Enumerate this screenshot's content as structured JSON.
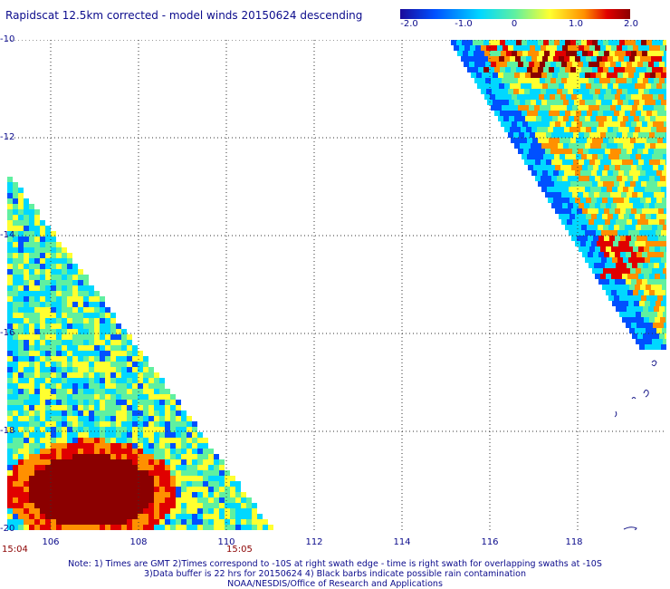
{
  "title": "Rapidscat 12.5km corrected - model winds 20150624 descending",
  "colorbar": {
    "ticks": [
      "-2.0",
      "-1.0",
      "0",
      "1.0",
      "2.0"
    ],
    "colors": [
      "#1a0a9a",
      "#0050ff",
      "#00d8ff",
      "#60f0a0",
      "#ffff30",
      "#ff9000",
      "#e00000",
      "#8b0000"
    ]
  },
  "axes": {
    "y_labels": [
      "-10",
      "-12",
      "-14",
      "-16",
      "-18",
      "-20"
    ],
    "x_labels": [
      "106",
      "108",
      "110",
      "112",
      "114",
      "116",
      "118"
    ]
  },
  "times": [
    "15:04",
    "15:05"
  ],
  "notes": [
    "Note: 1) Times are GMT 2)Times correspond to -10S at right swath edge - time is right swath for overlapping swaths at -10S",
    "3)Data buffer is 22 hrs for 20150624 4) Black barbs indicate possible rain contamination",
    "NOAA/NESDIS/Office of Research and Applications"
  ]
}
